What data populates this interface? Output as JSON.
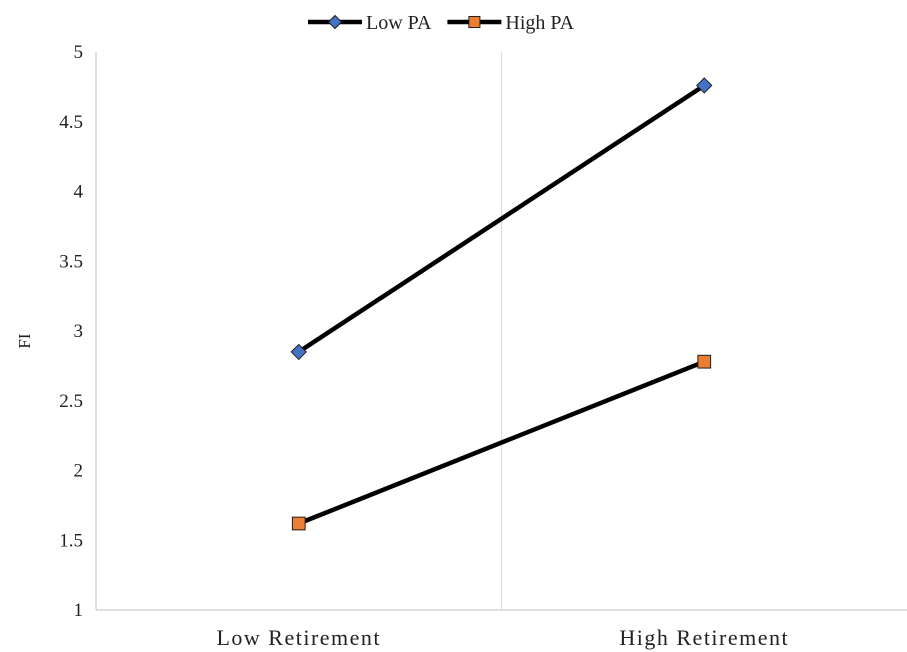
{
  "chart_data": {
    "type": "line",
    "title": "",
    "xlabel": "",
    "ylabel": "FI",
    "categories": [
      "Low Retirement",
      "High Retirement"
    ],
    "ylim": [
      1,
      5
    ],
    "yticks": [
      "1",
      "1.5",
      "2",
      "2.5",
      "3",
      "3.5",
      "4",
      "4.5",
      "5"
    ],
    "grid": false,
    "legend_position": "top",
    "series": [
      {
        "name": "Low PA",
        "values": [
          2.85,
          4.76
        ],
        "marker": "diamond",
        "line_color": "#000000",
        "marker_color": "#4472C4"
      },
      {
        "name": "High PA",
        "values": [
          1.62,
          2.78
        ],
        "marker": "square",
        "line_color": "#000000",
        "marker_color": "#ED7D31"
      }
    ]
  },
  "colors": {
    "axis": "#bfbfbf",
    "text": "#222222",
    "marker_edge": "#1f1f1f"
  }
}
